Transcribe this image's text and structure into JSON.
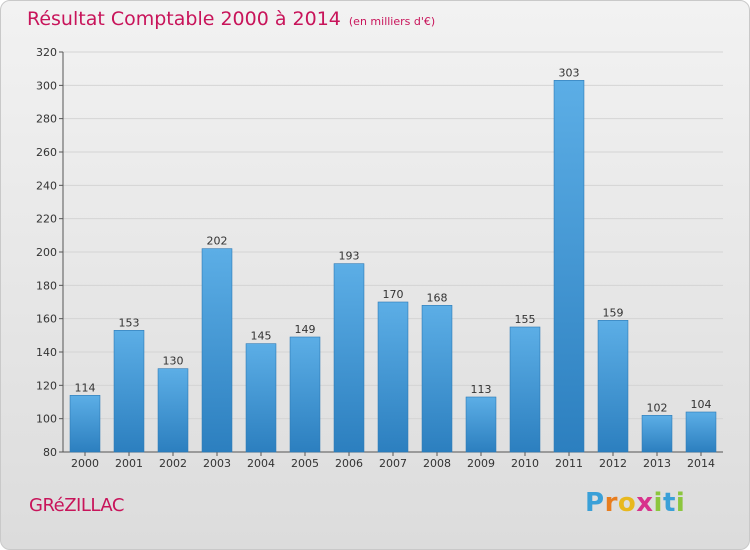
{
  "chart_title": "Résultat Comptable 2000 à 2014",
  "chart_subtitle": "(en milliers d'€)",
  "commune_name": "GRéZILLAC",
  "logo": {
    "letters": [
      "P",
      "r",
      "o",
      "x",
      "i",
      "t",
      "i"
    ],
    "colors": [
      "#3aa0d8",
      "#e87d1e",
      "#e8b81e",
      "#d8328c",
      "#8cc63e",
      "#3aa0d8",
      "#8cc63e"
    ]
  },
  "colors": {
    "title": "#c8145a",
    "bar_light": "#5caee6",
    "bar_dark": "#2c7fbf"
  },
  "chart_data": {
    "type": "bar",
    "title": "Résultat Comptable 2000 à 2014",
    "subtitle": "(en milliers d'€)",
    "categories": [
      "2000",
      "2001",
      "2002",
      "2003",
      "2004",
      "2005",
      "2006",
      "2007",
      "2008",
      "2009",
      "2010",
      "2011",
      "2012",
      "2013",
      "2014"
    ],
    "values": [
      114,
      153,
      130,
      202,
      145,
      149,
      193,
      170,
      168,
      113,
      155,
      303,
      159,
      102,
      104
    ],
    "ylim": [
      80,
      320
    ],
    "yticks": [
      80,
      100,
      120,
      140,
      160,
      180,
      200,
      220,
      240,
      260,
      280,
      300,
      320
    ],
    "grid": true,
    "legend": "none"
  }
}
